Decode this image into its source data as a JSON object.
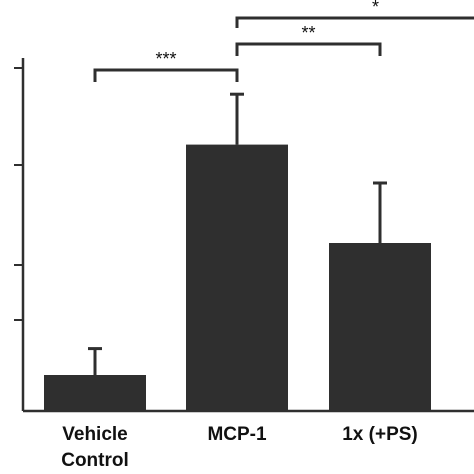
{
  "chart_data": {
    "type": "bar",
    "categories": [
      [
        "Vehicle",
        "Control"
      ],
      [
        "MCP-1"
      ],
      [
        "1x (+PS)"
      ],
      [
        ""
      ]
    ],
    "values": [
      0.75,
      5.55,
      3.5,
      0
    ],
    "errors": [
      0.55,
      1.05,
      1.25,
      0
    ],
    "ylim": [
      0,
      8
    ],
    "title": "",
    "xlabel": "",
    "ylabel": "",
    "bar_color": "#2f2f2f",
    "significance": [
      {
        "from": 0,
        "to": 1,
        "label": "***"
      },
      {
        "from": 1,
        "to": 2,
        "label": "**"
      },
      {
        "from": 1,
        "to": 3,
        "label": "*"
      }
    ]
  }
}
